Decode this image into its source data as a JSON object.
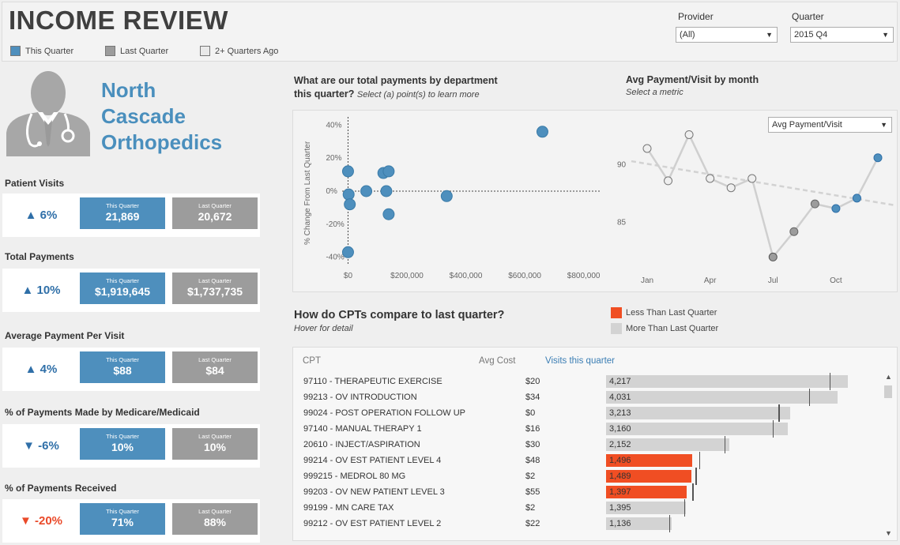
{
  "header": {
    "title": "INCOME REVIEW",
    "legend": [
      {
        "label": "This Quarter",
        "color": "#4e8fbd"
      },
      {
        "label": "Last Quarter",
        "color": "#9c9c9c"
      },
      {
        "label": "2+ Quarters Ago",
        "color": "#e9e9e9"
      }
    ],
    "provider": {
      "label": "Provider",
      "value": "(All)"
    },
    "quarter": {
      "label": "Quarter",
      "value": "2015 Q4"
    }
  },
  "org": {
    "name_lines": [
      "North",
      "Cascade",
      "Orthopedics"
    ]
  },
  "kpis": [
    {
      "label": "Patient Visits",
      "delta": "▲ 6%",
      "this_caption": "This Quarter",
      "this_value": "21,869",
      "last_caption": "Last Quarter",
      "last_value": "20,672"
    },
    {
      "label": "Total Payments",
      "delta": "▲ 10%",
      "this_caption": "This Quarter",
      "this_value": "$1,919,645",
      "last_caption": "Last Quarter",
      "last_value": "$1,737,735"
    },
    {
      "label": "Average Payment Per Visit",
      "delta": "▲ 4%",
      "this_caption": "This Quarter",
      "this_value": "$88",
      "last_caption": "Last Quarter",
      "last_value": "$84"
    },
    {
      "label": "%  of Payments Made by Medicare/Medicaid",
      "delta": "▼ -6%",
      "this_caption": "This Quarter",
      "this_value": "10%",
      "last_caption": "Last Quarter",
      "last_value": "10%"
    },
    {
      "label": "%  of Payments Received",
      "delta": "▼ -20%",
      "this_caption": "This Quarter",
      "this_value": "71%",
      "last_caption": "Last Quarter",
      "last_value": "88%"
    }
  ],
  "scatter": {
    "title": "What are our total payments by department",
    "title_line2": "this quarter?",
    "subtitle": "Select (a) point(s) to learn more"
  },
  "monthly": {
    "title": "Avg Payment/Visit by month",
    "subtitle": "Select a metric",
    "metric": "Avg Payment/Visit"
  },
  "cpt": {
    "title": "How do CPTs compare to last quarter?",
    "subtitle": "Hover for detail",
    "legend_less": "Less Than Last Quarter",
    "legend_more": "More Than Last Quarter",
    "col_cpt": "CPT",
    "col_cost": "Avg Cost",
    "col_visits": "Visits this quarter",
    "rows": [
      {
        "code": "97110 - THERAPEUTIC EXERCISE",
        "cost": "$20",
        "visits": 4217,
        "visits_label": "4,217",
        "last": 3890,
        "less": false
      },
      {
        "code": "99213 - OV INTRODUCTION",
        "cost": "$34",
        "visits": 4031,
        "visits_label": "4,031",
        "last": 3530,
        "less": false
      },
      {
        "code": "99024 - POST OPERATION FOLLOW UP",
        "cost": "$0",
        "visits": 3213,
        "visits_label": "3,213",
        "last": 3000,
        "less": false
      },
      {
        "code": "97140 - MANUAL THERAPY 1",
        "cost": "$16",
        "visits": 3160,
        "visits_label": "3,160",
        "last": 2900,
        "less": false
      },
      {
        "code": "20610 - INJECT/ASPIRATION",
        "cost": "$30",
        "visits": 2152,
        "visits_label": "2,152",
        "last": 2060,
        "less": false
      },
      {
        "code": "99214 - OV EST PATIENT LEVEL 4",
        "cost": "$48",
        "visits": 1496,
        "visits_label": "1,496",
        "last": 1620,
        "less": true
      },
      {
        "code": "999215 - MEDROL 80 MG",
        "cost": "$2",
        "visits": 1489,
        "visits_label": "1,489",
        "last": 1560,
        "less": true
      },
      {
        "code": "99203 - OV NEW PATIENT LEVEL 3",
        "cost": "$55",
        "visits": 1397,
        "visits_label": "1,397",
        "last": 1500,
        "less": true
      },
      {
        "code": "99199 - MN CARE TAX",
        "cost": "$2",
        "visits": 1395,
        "visits_label": "1,395",
        "last": 1360,
        "less": false
      },
      {
        "code": "99212 - OV EST PATIENT LEVEL 2",
        "cost": "$22",
        "visits": 1136,
        "visits_label": "1,136",
        "last": 1100,
        "less": false
      }
    ]
  },
  "chart_data": [
    {
      "type": "scatter",
      "title": "What are our total payments by department this quarter?",
      "xlabel": "",
      "ylabel": "% Change From Last Quarter",
      "xlim": [
        -20000,
        860000
      ],
      "ylim": [
        -45,
        45
      ],
      "x_ticks": [
        0,
        200000,
        400000,
        600000,
        800000
      ],
      "x_tick_labels": [
        "$0",
        "$200,000",
        "$400,000",
        "$600,000",
        "$800,000"
      ],
      "y_ticks": [
        40,
        20,
        0,
        -20,
        -40
      ],
      "y_tick_labels": [
        "40%",
        "20%",
        "0%",
        "-20%",
        "-40%"
      ],
      "points": [
        {
          "x": 0,
          "y": 12
        },
        {
          "x": 2000,
          "y": -2
        },
        {
          "x": 6000,
          "y": -8
        },
        {
          "x": 62000,
          "y": 0
        },
        {
          "x": 120000,
          "y": 11
        },
        {
          "x": 138000,
          "y": 12
        },
        {
          "x": 130000,
          "y": 0
        },
        {
          "x": 138000,
          "y": -14
        },
        {
          "x": 0,
          "y": -37
        },
        {
          "x": 335000,
          "y": -3
        },
        {
          "x": 660000,
          "y": 36
        }
      ]
    },
    {
      "type": "line",
      "title": "Avg Payment/Visit by month",
      "categories": [
        "Jan",
        "Feb",
        "Mar",
        "Apr",
        "May",
        "Jun",
        "Jul",
        "Aug",
        "Sep",
        "Oct",
        "Nov",
        "Dec"
      ],
      "x_tick_labels": [
        "Jan",
        "Apr",
        "Jul",
        "Oct"
      ],
      "series": [
        {
          "name": "Avg Payment/Visit",
          "values": [
            91.4,
            88.6,
            92.6,
            88.8,
            88.0,
            88.8,
            82.0,
            84.2,
            86.6,
            86.2,
            87.1,
            90.6
          ]
        }
      ],
      "trend": [
        90.3,
        86.5
      ],
      "highlight_from_index": 9,
      "y_ticks": [
        85,
        90
      ],
      "ylim": [
        81,
        94
      ]
    }
  ]
}
